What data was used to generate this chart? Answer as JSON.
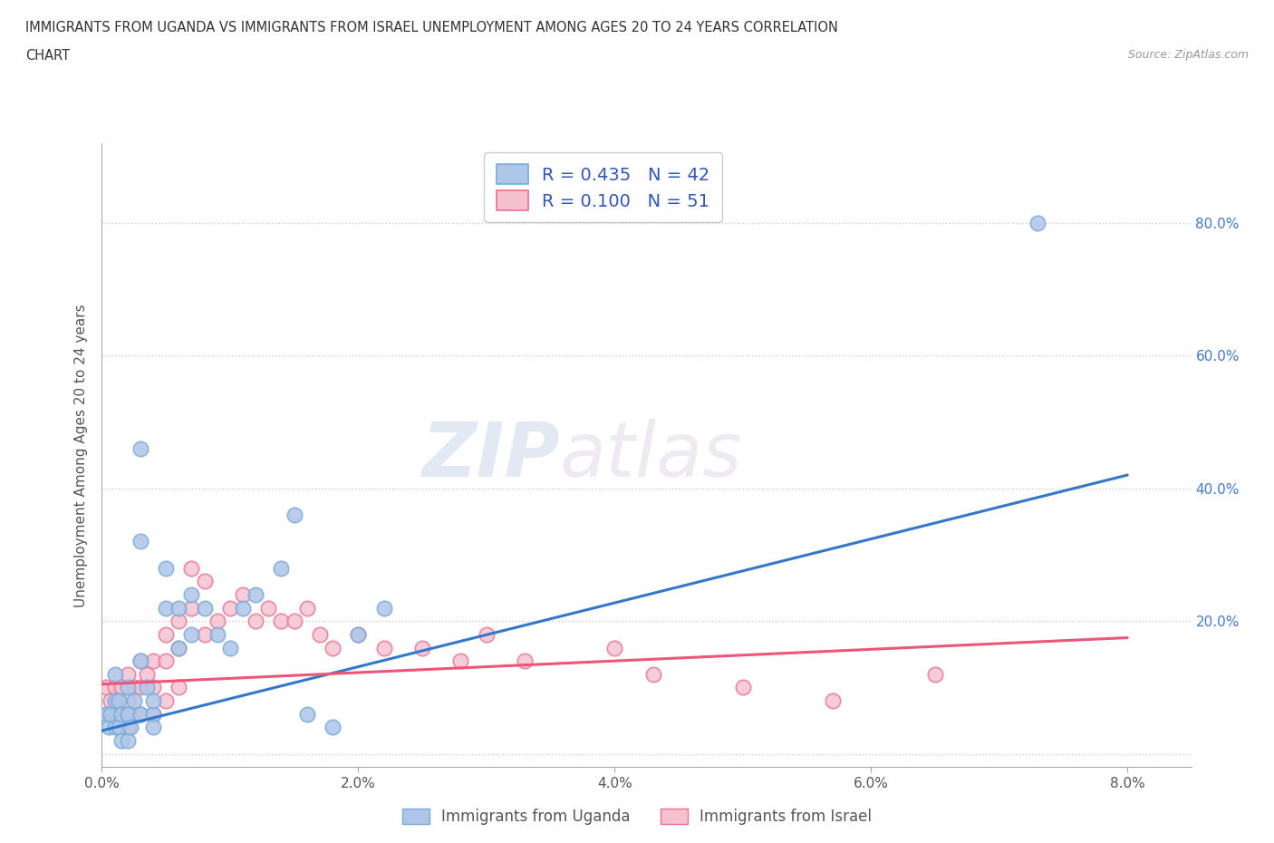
{
  "title_line1": "IMMIGRANTS FROM UGANDA VS IMMIGRANTS FROM ISRAEL UNEMPLOYMENT AMONG AGES 20 TO 24 YEARS CORRELATION",
  "title_line2": "CHART",
  "source": "Source: ZipAtlas.com",
  "ylabel": "Unemployment Among Ages 20 to 24 years",
  "xlim": [
    0.0,
    0.085
  ],
  "ylim": [
    -0.02,
    0.92
  ],
  "xticks": [
    0.0,
    0.02,
    0.04,
    0.06,
    0.08
  ],
  "xtick_labels": [
    "0.0%",
    "2.0%",
    "4.0%",
    "6.0%",
    "8.0%"
  ],
  "yticks": [
    0.0,
    0.2,
    0.4,
    0.6,
    0.8
  ],
  "ytick_labels": [
    "",
    "20.0%",
    "40.0%",
    "60.0%",
    "80.0%"
  ],
  "uganda_color": "#aec6e8",
  "uganda_color_edge": "#7aacda",
  "israel_color": "#f5c0d0",
  "israel_color_edge": "#e87090",
  "legend_text_color": "#3355bb",
  "watermark_zip": "ZIP",
  "watermark_atlas": "atlas",
  "uganda_x": [
    0.0003,
    0.0005,
    0.0007,
    0.001,
    0.001,
    0.001,
    0.0013,
    0.0013,
    0.0015,
    0.0015,
    0.002,
    0.002,
    0.002,
    0.002,
    0.0022,
    0.0025,
    0.003,
    0.003,
    0.003,
    0.003,
    0.0035,
    0.004,
    0.004,
    0.004,
    0.005,
    0.005,
    0.006,
    0.006,
    0.007,
    0.007,
    0.008,
    0.009,
    0.01,
    0.011,
    0.012,
    0.014,
    0.016,
    0.018,
    0.02,
    0.022,
    0.073,
    0.015
  ],
  "uganda_y": [
    0.06,
    0.04,
    0.06,
    0.12,
    0.08,
    0.04,
    0.08,
    0.04,
    0.06,
    0.02,
    0.1,
    0.06,
    0.02,
    0.06,
    0.04,
    0.08,
    0.46,
    0.32,
    0.14,
    0.06,
    0.1,
    0.06,
    0.04,
    0.08,
    0.28,
    0.22,
    0.22,
    0.16,
    0.24,
    0.18,
    0.22,
    0.18,
    0.16,
    0.22,
    0.24,
    0.28,
    0.06,
    0.04,
    0.18,
    0.22,
    0.8,
    0.36
  ],
  "israel_x": [
    0.0003,
    0.0005,
    0.0007,
    0.001,
    0.001,
    0.0012,
    0.0013,
    0.0015,
    0.002,
    0.002,
    0.002,
    0.0022,
    0.0025,
    0.003,
    0.003,
    0.003,
    0.0035,
    0.004,
    0.004,
    0.004,
    0.005,
    0.005,
    0.005,
    0.006,
    0.006,
    0.006,
    0.007,
    0.007,
    0.008,
    0.008,
    0.009,
    0.01,
    0.011,
    0.012,
    0.013,
    0.014,
    0.015,
    0.016,
    0.017,
    0.018,
    0.02,
    0.022,
    0.025,
    0.028,
    0.03,
    0.033,
    0.04,
    0.043,
    0.05,
    0.057,
    0.065
  ],
  "israel_y": [
    0.1,
    0.06,
    0.08,
    0.1,
    0.06,
    0.08,
    0.04,
    0.1,
    0.12,
    0.08,
    0.04,
    0.06,
    0.1,
    0.14,
    0.1,
    0.06,
    0.12,
    0.14,
    0.1,
    0.06,
    0.18,
    0.14,
    0.08,
    0.2,
    0.16,
    0.1,
    0.28,
    0.22,
    0.26,
    0.18,
    0.2,
    0.22,
    0.24,
    0.2,
    0.22,
    0.2,
    0.2,
    0.22,
    0.18,
    0.16,
    0.18,
    0.16,
    0.16,
    0.14,
    0.18,
    0.14,
    0.16,
    0.12,
    0.1,
    0.08,
    0.12
  ],
  "uganda_trend": [
    0.0,
    0.08,
    0.035,
    0.42
  ],
  "israel_trend": [
    0.0,
    0.08,
    0.105,
    0.175
  ],
  "background_color": "#ffffff",
  "grid_color": "#cccccc",
  "legend_r_uganda": "R = 0.435",
  "legend_n_uganda": "N = 42",
  "legend_r_israel": "R = 0.100",
  "legend_n_israel": "N = 51"
}
